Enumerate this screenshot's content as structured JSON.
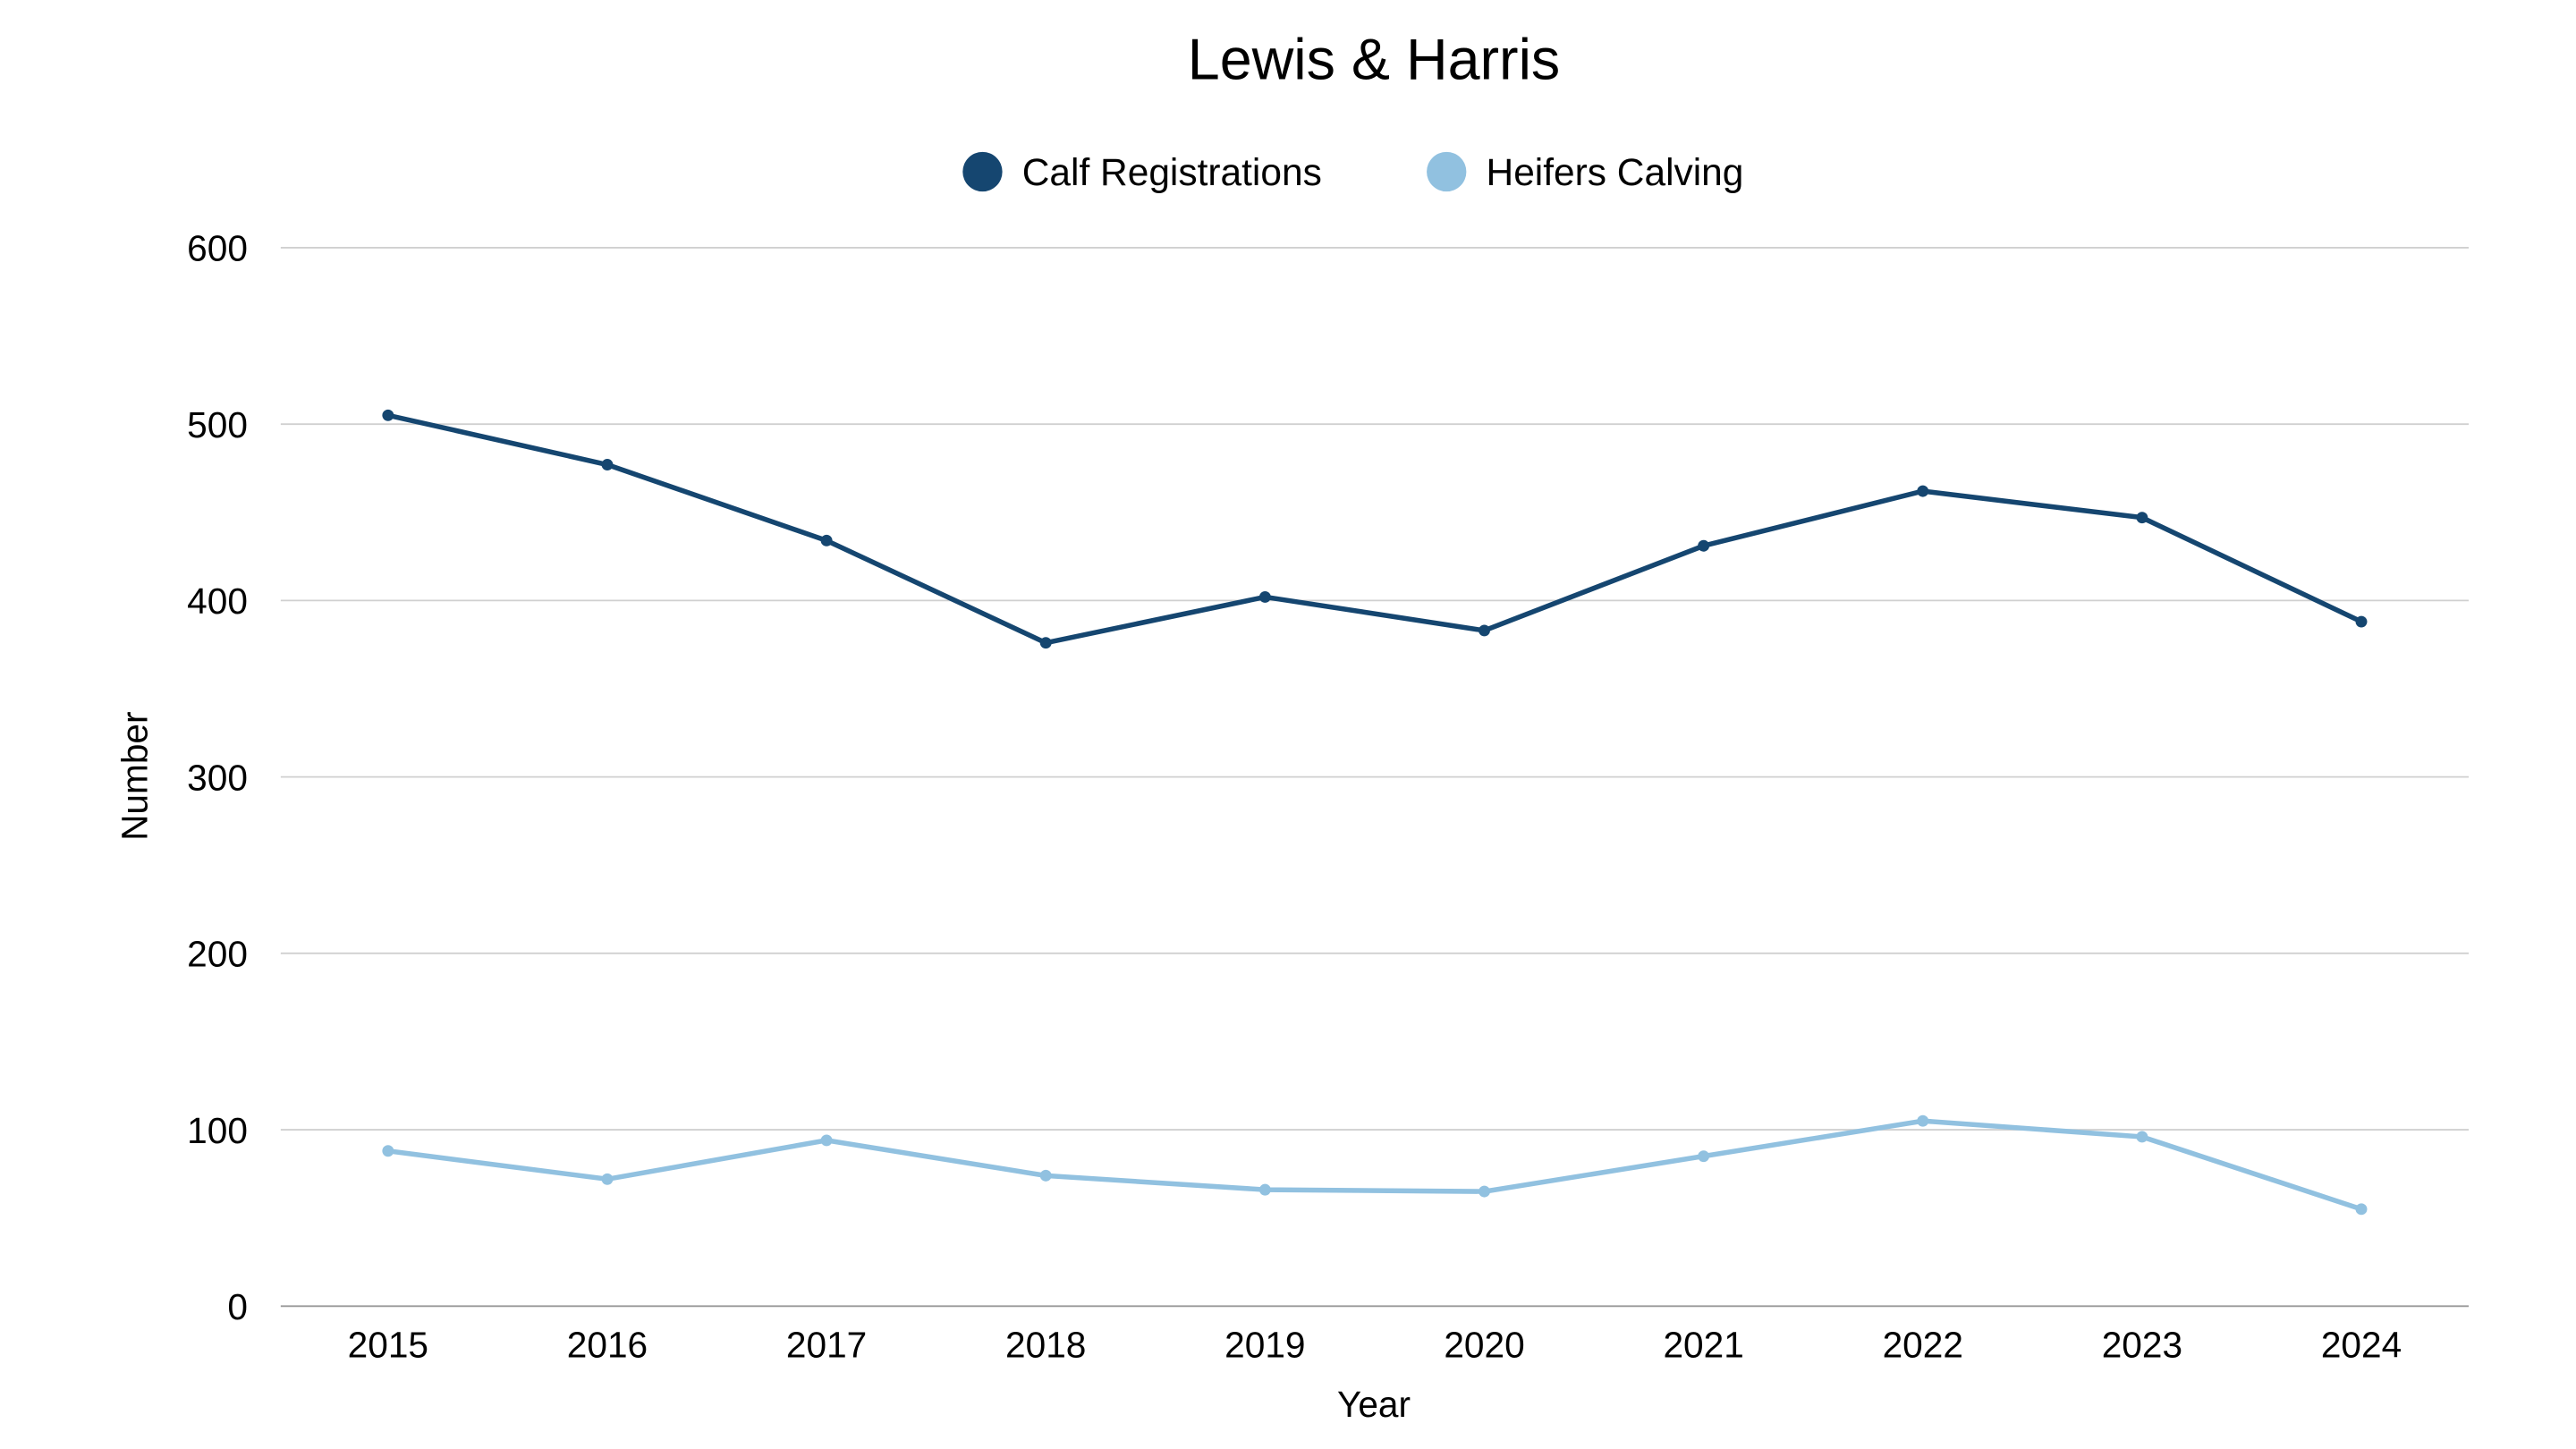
{
  "chart_data": {
    "type": "line",
    "title": "Lewis & Harris",
    "xlabel": "Year",
    "ylabel": "Number",
    "ylim": [
      0,
      600
    ],
    "yticks": [
      0,
      100,
      200,
      300,
      400,
      500,
      600
    ],
    "grid": true,
    "legend_placement": "top",
    "x": [
      "2015",
      "2016",
      "2017",
      "2018",
      "2019",
      "2020",
      "2021",
      "2022",
      "2023",
      "2024"
    ],
    "series": [
      {
        "name": "Calf Registrations",
        "color": "#154670",
        "values": [
          505,
          477,
          434,
          376,
          402,
          383,
          431,
          462,
          447,
          388
        ]
      },
      {
        "name": "Heifers Calving",
        "color": "#91c1e0",
        "values": [
          88,
          72,
          94,
          74,
          66,
          65,
          85,
          105,
          96,
          55
        ]
      }
    ]
  }
}
